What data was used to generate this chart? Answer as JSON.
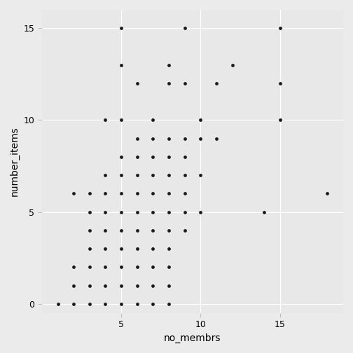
{
  "x": [
    1,
    2,
    3,
    4,
    5,
    6,
    7,
    8,
    2,
    3,
    4,
    5,
    6,
    7,
    8,
    2,
    3,
    4,
    5,
    6,
    7,
    8,
    3,
    4,
    5,
    6,
    7,
    8,
    3,
    4,
    5,
    6,
    7,
    8,
    9,
    3,
    4,
    5,
    6,
    7,
    8,
    9,
    10,
    14,
    2,
    3,
    4,
    5,
    6,
    7,
    8,
    9,
    4,
    5,
    6,
    7,
    8,
    9,
    10,
    5,
    6,
    7,
    8,
    9,
    6,
    7,
    8,
    9,
    10,
    11,
    4,
    5,
    7,
    10,
    15,
    6,
    8,
    9,
    11,
    15,
    5,
    8,
    12,
    5,
    9,
    15,
    18
  ],
  "y": [
    0,
    0,
    0,
    0,
    0,
    0,
    0,
    0,
    1,
    1,
    1,
    1,
    1,
    1,
    1,
    2,
    2,
    2,
    2,
    2,
    2,
    2,
    3,
    3,
    3,
    3,
    3,
    3,
    4,
    4,
    4,
    4,
    4,
    4,
    4,
    5,
    5,
    5,
    5,
    5,
    5,
    5,
    5,
    5,
    6,
    6,
    6,
    6,
    6,
    6,
    6,
    6,
    7,
    7,
    7,
    7,
    7,
    7,
    7,
    8,
    8,
    8,
    8,
    8,
    9,
    9,
    9,
    9,
    9,
    9,
    10,
    10,
    10,
    10,
    10,
    12,
    12,
    12,
    12,
    12,
    13,
    13,
    13,
    15,
    15,
    15,
    6
  ],
  "xlabel": "no_membrs",
  "ylabel": "number_items",
  "xlim": [
    0,
    19
  ],
  "ylim": [
    -0.5,
    16
  ],
  "bg_color": "#ebebeb",
  "panel_bg": "#e8e8e8",
  "dot_color": "#1a1a1a",
  "dot_size": 12,
  "grid_color": "#ffffff",
  "xticks": [
    5,
    10,
    15
  ],
  "yticks": [
    0,
    5,
    10,
    15
  ],
  "xlabel_fontsize": 10,
  "ylabel_fontsize": 10,
  "tick_fontsize": 9
}
